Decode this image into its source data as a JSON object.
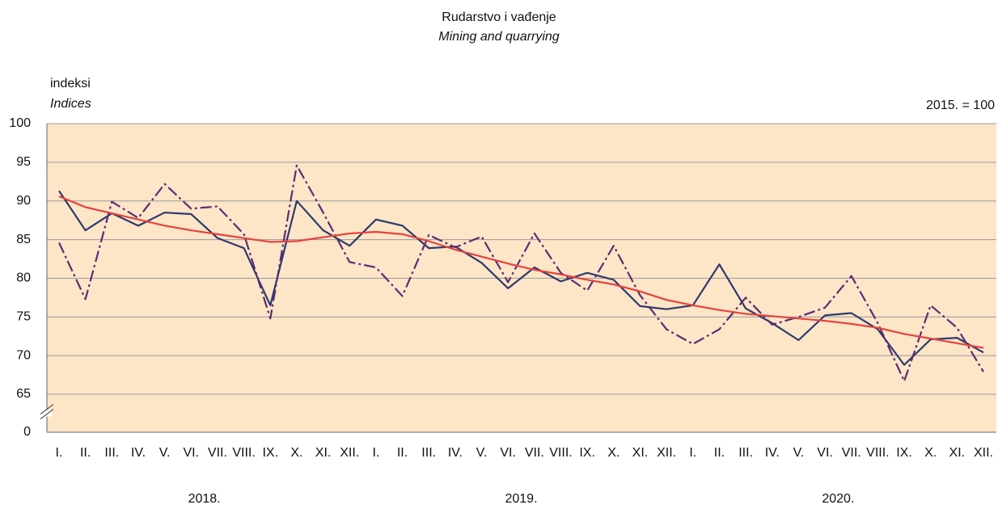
{
  "chart_data": {
    "type": "line",
    "title": "Rudarstvo i vađenje",
    "subtitle": "Mining and quarrying",
    "y_label": "indeksi",
    "y_label_en": "Indices",
    "annotation": "2015. = 100",
    "categories": [
      "I.",
      "II.",
      "III.",
      "IV.",
      "V.",
      "VI.",
      "VII.",
      "VIII.",
      "IX.",
      "X.",
      "XI.",
      "XII.",
      "I.",
      "II.",
      "III.",
      "IV.",
      "V.",
      "VI.",
      "VII.",
      "VIII.",
      "IX.",
      "X.",
      "XI.",
      "XII.",
      "I.",
      "II.",
      "III.",
      "IV.",
      "V.",
      "VI.",
      "VII.",
      "VIII.",
      "IX.",
      "X.",
      "XI.",
      "XII."
    ],
    "year_labels": [
      "2018.",
      "2019.",
      "2020."
    ],
    "series": [
      {
        "color": "#2b3a6b",
        "style": "solid",
        "values": [
          91.3,
          86.2,
          88.4,
          86.8,
          88.5,
          88.3,
          85.2,
          83.9,
          76.5,
          90.0,
          86.2,
          84.2,
          87.6,
          86.8,
          83.9,
          84.1,
          82.0,
          78.7,
          81.4,
          79.6,
          80.7,
          79.8,
          76.4,
          76.0,
          76.5,
          81.8,
          76.1,
          74.2,
          72.0,
          75.2,
          75.5,
          73.4,
          68.8,
          72.1,
          72.3,
          70.4
        ]
      },
      {
        "color": "#5b2d73",
        "style": "dashdot",
        "values": [
          84.6,
          77.3,
          89.9,
          87.8,
          92.2,
          89.0,
          89.3,
          85.7,
          74.8,
          94.6,
          88.5,
          82.1,
          81.4,
          77.7,
          85.6,
          84.0,
          85.4,
          79.5,
          85.8,
          80.7,
          78.4,
          84.2,
          77.8,
          73.4,
          71.5,
          73.4,
          77.5,
          74.0,
          75.0,
          76.2,
          80.3,
          74.2,
          66.7,
          76.5,
          73.6,
          67.9
        ]
      },
      {
        "color": "#e8413c",
        "style": "solid",
        "values": [
          90.6,
          89.2,
          88.4,
          87.6,
          86.8,
          86.2,
          85.7,
          85.2,
          84.7,
          84.8,
          85.3,
          85.8,
          86.0,
          85.7,
          84.8,
          83.7,
          82.8,
          81.9,
          81.1,
          80.5,
          79.8,
          79.2,
          78.3,
          77.2,
          76.5,
          75.9,
          75.4,
          75.1,
          74.8,
          74.5,
          74.1,
          73.6,
          72.8,
          72.2,
          71.6,
          71.0
        ]
      }
    ],
    "ylim": [
      0,
      100
    ],
    "yticks": [
      0,
      65,
      70,
      75,
      80,
      85,
      90,
      95,
      100
    ],
    "axis_break": true,
    "grid": true,
    "background": "#fde5c8"
  }
}
